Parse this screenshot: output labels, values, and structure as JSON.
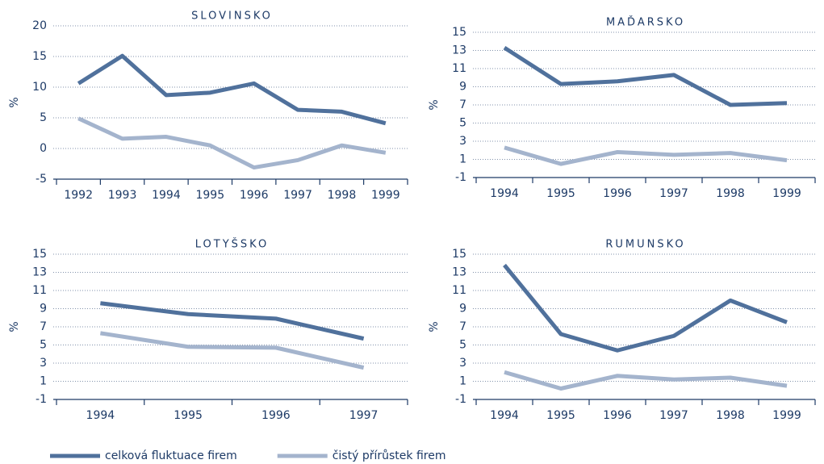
{
  "chart_data": [
    {
      "type": "line",
      "title": "SLOVINSKO",
      "ylabel": "%",
      "categories": [
        "1992",
        "1993",
        "1994",
        "1995",
        "1996",
        "1997",
        "1998",
        "1999"
      ],
      "series": [
        {
          "name": "celková fluktuace firem",
          "color": "#50719c",
          "values": [
            10.6,
            15.1,
            8.7,
            9.1,
            10.6,
            6.3,
            6.0,
            4.1
          ]
        },
        {
          "name": "čistý přírůstek firem",
          "color": "#a4b4cd",
          "values": [
            4.9,
            1.6,
            1.9,
            0.5,
            -3.1,
            -1.9,
            0.5,
            -0.7
          ]
        }
      ],
      "ylim": [
        -5,
        20
      ],
      "yticks": [
        -5,
        0,
        5,
        10,
        15,
        20
      ],
      "grid": true
    },
    {
      "type": "line",
      "title": "MAĎARSKO",
      "ylabel": "%",
      "categories": [
        "1994",
        "1995",
        "1996",
        "1997",
        "1998",
        "1999"
      ],
      "series": [
        {
          "color": "#50719c",
          "values": [
            13.3,
            9.3,
            9.6,
            10.3,
            7.0,
            7.2
          ]
        },
        {
          "color": "#a4b4cd",
          "values": [
            2.3,
            0.5,
            1.8,
            1.5,
            1.7,
            0.9
          ]
        }
      ],
      "ylim": [
        -1,
        15
      ],
      "yticks": [
        -1,
        1,
        3,
        5,
        7,
        9,
        11,
        13,
        15
      ],
      "grid": true
    },
    {
      "type": "line",
      "title": "LOTYŠSKO",
      "ylabel": "%",
      "categories": [
        "1994",
        "1995",
        "1996",
        "1997"
      ],
      "series": [
        {
          "color": "#50719c",
          "values": [
            9.6,
            8.4,
            7.9,
            5.7
          ]
        },
        {
          "color": "#a4b4cd",
          "values": [
            6.3,
            4.8,
            4.7,
            2.5
          ]
        }
      ],
      "ylim": [
        -1,
        15
      ],
      "yticks": [
        -1,
        1,
        3,
        5,
        7,
        9,
        11,
        13,
        15
      ],
      "grid": true
    },
    {
      "type": "line",
      "title": "RUMUNSKO",
      "ylabel": "%",
      "categories": [
        "1994",
        "1995",
        "1996",
        "1997",
        "1998",
        "1999"
      ],
      "series": [
        {
          "color": "#50719c",
          "values": [
            13.8,
            6.2,
            4.4,
            6.0,
            9.9,
            7.5
          ]
        },
        {
          "color": "#a4b4cd",
          "values": [
            2.0,
            0.2,
            1.6,
            1.2,
            1.4,
            0.5
          ]
        }
      ],
      "ylim": [
        -1,
        15
      ],
      "yticks": [
        -1,
        1,
        3,
        5,
        7,
        9,
        11,
        13,
        15
      ],
      "grid": true
    }
  ]
}
